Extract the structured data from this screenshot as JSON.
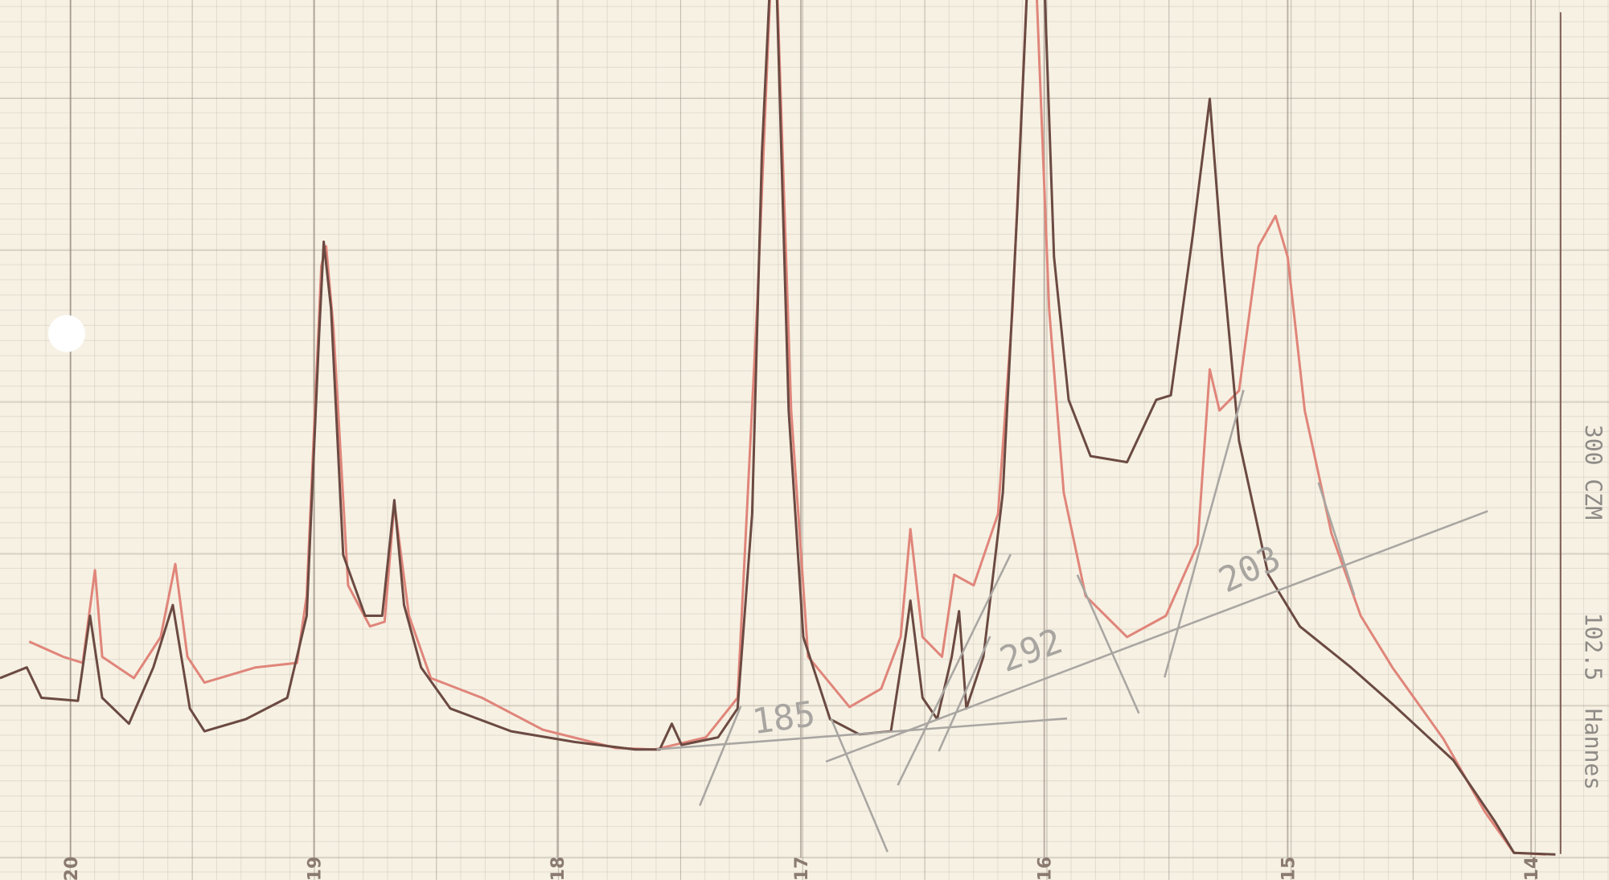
{
  "chart_data": {
    "type": "line",
    "xlim": [
      20.29,
      13.68
    ],
    "xticks": [
      20,
      19,
      18,
      17,
      16,
      15,
      14
    ],
    "ylim": [
      0,
      56.4
    ],
    "series": [
      {
        "color": "#6b4a42",
        "x": [
          20.29,
          20.18,
          20.12,
          19.97,
          19.92,
          19.87,
          19.76,
          19.66,
          19.58,
          19.51,
          19.45,
          19.28,
          19.11,
          19.03,
          18.98,
          18.96,
          18.93,
          18.88,
          18.79,
          18.72,
          18.67,
          18.63,
          18.56,
          18.44,
          18.19,
          17.93,
          17.68,
          17.58,
          17.53,
          17.49,
          17.34,
          17.26,
          17.2,
          17.16,
          17.11,
          17.05,
          16.99,
          16.88,
          16.76,
          16.63,
          16.57,
          16.55,
          16.5,
          16.44,
          16.38,
          16.35,
          16.32,
          16.25,
          16.17,
          16.11,
          16.05,
          16.0,
          15.96,
          15.9,
          15.81,
          15.66,
          15.54,
          15.48,
          15.39,
          15.32,
          15.27,
          15.2,
          15.08,
          14.95,
          14.74,
          14.57,
          14.32,
          14.15,
          14.07,
          13.9
        ],
        "values": [
          11.8,
          12.5,
          10.5,
          10.3,
          15.9,
          10.5,
          8.8,
          12.5,
          16.6,
          9.8,
          8.3,
          9.1,
          10.5,
          15.9,
          34.1,
          40.5,
          36.1,
          19.9,
          15.9,
          15.9,
          23.5,
          16.6,
          12.5,
          9.8,
          8.3,
          7.6,
          7.1,
          7.1,
          8.8,
          7.4,
          7.9,
          9.8,
          22.6,
          46.3,
          63.2,
          29.4,
          14.5,
          9.1,
          8.1,
          8.3,
          14.5,
          16.9,
          10.5,
          9.1,
          13.2,
          16.2,
          9.8,
          13.2,
          24.0,
          42.9,
          64.5,
          57.8,
          39.5,
          30.1,
          26.4,
          26.0,
          30.1,
          30.4,
          40.9,
          49.9,
          39.5,
          27.4,
          18.6,
          15.2,
          12.5,
          10.1,
          6.4,
          2.4,
          0.3,
          0.2
        ]
      },
      {
        "color": "#e0857a",
        "x": [
          20.17,
          20.03,
          19.95,
          19.9,
          19.87,
          19.74,
          19.63,
          19.57,
          19.52,
          19.45,
          19.24,
          19.07,
          19.03,
          18.97,
          18.95,
          18.92,
          18.86,
          18.77,
          18.71,
          18.67,
          18.61,
          18.52,
          18.31,
          18.06,
          17.76,
          17.6,
          17.39,
          17.26,
          17.18,
          17.11,
          17.04,
          16.97,
          16.8,
          16.67,
          16.59,
          16.55,
          16.5,
          16.42,
          16.37,
          16.29,
          16.19,
          16.13,
          16.05,
          15.98,
          15.92,
          15.83,
          15.66,
          15.5,
          15.37,
          15.32,
          15.28,
          15.2,
          15.12,
          15.05,
          15.0,
          14.93,
          14.82,
          14.7,
          14.57,
          14.36,
          14.19,
          14.07,
          13.94
        ],
        "values": [
          14.2,
          13.2,
          12.8,
          18.9,
          13.2,
          11.8,
          14.5,
          19.3,
          13.2,
          11.5,
          12.5,
          12.8,
          17.2,
          38.9,
          40.2,
          34.8,
          17.9,
          15.2,
          15.5,
          23.3,
          15.9,
          11.8,
          10.5,
          8.4,
          7.2,
          7.1,
          7.9,
          10.5,
          36.1,
          63.2,
          29.4,
          13.2,
          9.9,
          11.1,
          14.5,
          21.6,
          14.5,
          13.2,
          18.6,
          17.9,
          22.6,
          36.1,
          64.5,
          36.1,
          24.0,
          17.2,
          14.5,
          15.9,
          20.6,
          32.1,
          29.4,
          30.7,
          40.2,
          42.2,
          39.5,
          29.4,
          21.3,
          15.9,
          12.5,
          7.8,
          3.0,
          0.3,
          0.2
        ]
      }
    ],
    "annotations": [
      "185",
      "292",
      "203",
      "300 CZM",
      "102.5",
      "Hannes"
    ]
  }
}
